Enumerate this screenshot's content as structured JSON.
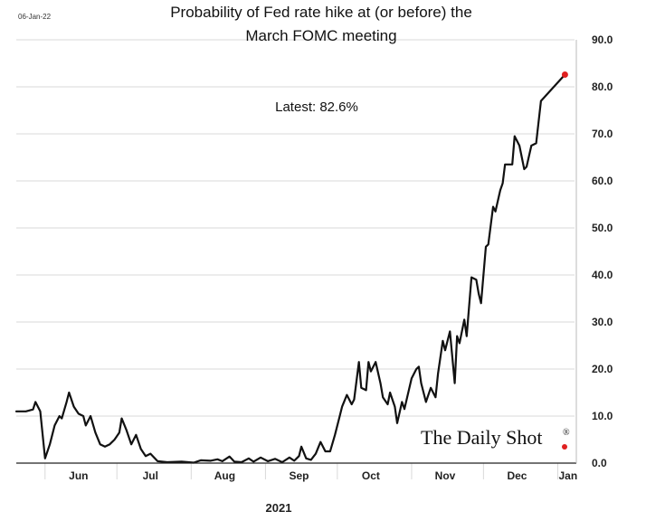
{
  "date_stamp": "06-Jan-22",
  "title_line1": "Probability of Fed rate hike at (or before) the",
  "title_line2": "March FOMC meeting",
  "latest_label": "Latest:  82.6%",
  "year_label": "2021",
  "brand": "The Daily Shot",
  "brand_mark": "®",
  "colors": {
    "line": "#111111",
    "endpoint": "#e02020",
    "grid": "#d9d9d9",
    "axis": "#222222"
  },
  "chart_data": {
    "type": "line",
    "title": "Probability of Fed rate hike at (or before) the March FOMC meeting",
    "ylim": [
      0,
      90
    ],
    "yticks": [
      "0.0",
      "10.0",
      "20.0",
      "30.0",
      "40.0",
      "50.0",
      "60.0",
      "70.0",
      "80.0",
      "90.0"
    ],
    "ytick_values": [
      0,
      10,
      20,
      30,
      40,
      50,
      60,
      70,
      80,
      90
    ],
    "xlim": [
      "2021-05-20",
      "2022-01-08"
    ],
    "xticks": [
      {
        "label": "Jun",
        "date": "2021-06-01",
        "divider": "2021-06-15"
      },
      {
        "label": "Jul",
        "date": "2021-07-01",
        "divider": "2021-07-15"
      },
      {
        "label": "Aug",
        "date": "2021-08-01",
        "divider": "2021-08-15"
      },
      {
        "label": "Sep",
        "date": "2021-09-01",
        "divider": "2021-09-15"
      },
      {
        "label": "Oct",
        "date": "2021-10-01",
        "divider": "2021-10-15"
      },
      {
        "label": "Nov",
        "date": "2021-11-01",
        "divider": "2021-11-15"
      },
      {
        "label": "Dec",
        "date": "2021-12-01",
        "divider": "2021-12-15"
      },
      {
        "label": "Jan",
        "date": "2022-01-01",
        "divider": "2021-12-31"
      }
    ],
    "grid": true,
    "series": [
      {
        "points": [
          [
            "2021-05-20",
            11.0
          ],
          [
            "2021-05-24",
            11.0
          ],
          [
            "2021-05-27",
            11.4
          ],
          [
            "2021-05-28",
            13.0
          ],
          [
            "2021-05-30",
            11.0
          ],
          [
            "2021-06-01",
            1.0
          ],
          [
            "2021-06-03",
            4.0
          ],
          [
            "2021-06-05",
            8.0
          ],
          [
            "2021-06-07",
            10.0
          ],
          [
            "2021-06-08",
            9.5
          ],
          [
            "2021-06-10",
            13.0
          ],
          [
            "2021-06-11",
            15.0
          ],
          [
            "2021-06-13",
            12.0
          ],
          [
            "2021-06-15",
            10.5
          ],
          [
            "2021-06-17",
            10.0
          ],
          [
            "2021-06-18",
            8.0
          ],
          [
            "2021-06-20",
            10.0
          ],
          [
            "2021-06-22",
            6.5
          ],
          [
            "2021-06-24",
            4.0
          ],
          [
            "2021-06-26",
            3.5
          ],
          [
            "2021-06-28",
            4.0
          ],
          [
            "2021-06-30",
            5.0
          ],
          [
            "2021-07-02",
            6.5
          ],
          [
            "2021-07-03",
            9.5
          ],
          [
            "2021-07-05",
            7.0
          ],
          [
            "2021-07-07",
            4.0
          ],
          [
            "2021-07-09",
            6.0
          ],
          [
            "2021-07-11",
            3.0
          ],
          [
            "2021-07-13",
            1.5
          ],
          [
            "2021-07-15",
            2.0
          ],
          [
            "2021-07-18",
            0.4
          ],
          [
            "2021-07-22",
            0.2
          ],
          [
            "2021-07-28",
            0.3
          ],
          [
            "2021-08-02",
            0.1
          ],
          [
            "2021-08-05",
            0.6
          ],
          [
            "2021-08-09",
            0.5
          ],
          [
            "2021-08-12",
            0.8
          ],
          [
            "2021-08-14",
            0.4
          ],
          [
            "2021-08-17",
            1.4
          ],
          [
            "2021-08-19",
            0.3
          ],
          [
            "2021-08-22",
            0.2
          ],
          [
            "2021-08-25",
            1.0
          ],
          [
            "2021-08-27",
            0.3
          ],
          [
            "2021-08-30",
            1.2
          ],
          [
            "2021-09-02",
            0.4
          ],
          [
            "2021-09-05",
            0.9
          ],
          [
            "2021-09-08",
            0.2
          ],
          [
            "2021-09-11",
            1.2
          ],
          [
            "2021-09-13",
            0.5
          ],
          [
            "2021-09-15",
            1.5
          ],
          [
            "2021-09-16",
            3.5
          ],
          [
            "2021-09-18",
            1.0
          ],
          [
            "2021-09-20",
            0.7
          ],
          [
            "2021-09-22",
            2.0
          ],
          [
            "2021-09-24",
            4.5
          ],
          [
            "2021-09-26",
            2.5
          ],
          [
            "2021-09-28",
            2.5
          ],
          [
            "2021-09-30",
            6.0
          ],
          [
            "2021-10-02",
            10.0
          ],
          [
            "2021-10-03",
            12.0
          ],
          [
            "2021-10-05",
            14.5
          ],
          [
            "2021-10-07",
            12.5
          ],
          [
            "2021-10-08",
            13.5
          ],
          [
            "2021-10-10",
            21.5
          ],
          [
            "2021-10-11",
            16.0
          ],
          [
            "2021-10-13",
            15.5
          ],
          [
            "2021-10-14",
            21.5
          ],
          [
            "2021-10-15",
            19.5
          ],
          [
            "2021-10-17",
            21.5
          ],
          [
            "2021-10-19",
            17.0
          ],
          [
            "2021-10-20",
            14.0
          ],
          [
            "2021-10-22",
            12.5
          ],
          [
            "2021-10-23",
            15.0
          ],
          [
            "2021-10-25",
            12.0
          ],
          [
            "2021-10-26",
            8.5
          ],
          [
            "2021-10-28",
            13.0
          ],
          [
            "2021-10-29",
            11.5
          ],
          [
            "2021-11-01",
            18.0
          ],
          [
            "2021-11-03",
            20.0
          ],
          [
            "2021-11-04",
            20.5
          ],
          [
            "2021-11-05",
            17.0
          ],
          [
            "2021-11-07",
            13.0
          ],
          [
            "2021-11-09",
            16.0
          ],
          [
            "2021-11-11",
            14.0
          ],
          [
            "2021-11-12",
            19.0
          ],
          [
            "2021-11-14",
            26.0
          ],
          [
            "2021-11-15",
            24.0
          ],
          [
            "2021-11-17",
            28.0
          ],
          [
            "2021-11-19",
            17.0
          ],
          [
            "2021-11-20",
            27.0
          ],
          [
            "2021-11-21",
            25.5
          ],
          [
            "2021-11-23",
            30.5
          ],
          [
            "2021-11-24",
            27.0
          ],
          [
            "2021-11-26",
            39.5
          ],
          [
            "2021-11-28",
            39.0
          ],
          [
            "2021-11-29",
            36.0
          ],
          [
            "2021-11-30",
            34.0
          ],
          [
            "2021-12-02",
            46.0
          ],
          [
            "2021-12-03",
            46.5
          ],
          [
            "2021-12-05",
            54.5
          ],
          [
            "2021-12-06",
            53.5
          ],
          [
            "2021-12-08",
            58.0
          ],
          [
            "2021-12-09",
            59.5
          ],
          [
            "2021-12-10",
            63.5
          ],
          [
            "2021-12-13",
            63.5
          ],
          [
            "2021-12-14",
            69.5
          ],
          [
            "2021-12-16",
            67.5
          ],
          [
            "2021-12-18",
            62.5
          ],
          [
            "2021-12-19",
            63.0
          ],
          [
            "2021-12-21",
            67.5
          ],
          [
            "2021-12-23",
            68.0
          ],
          [
            "2021-12-25",
            77.0
          ],
          [
            "2022-01-04",
            82.6
          ]
        ]
      }
    ],
    "latest_point": [
      "2022-01-04",
      82.6
    ]
  }
}
